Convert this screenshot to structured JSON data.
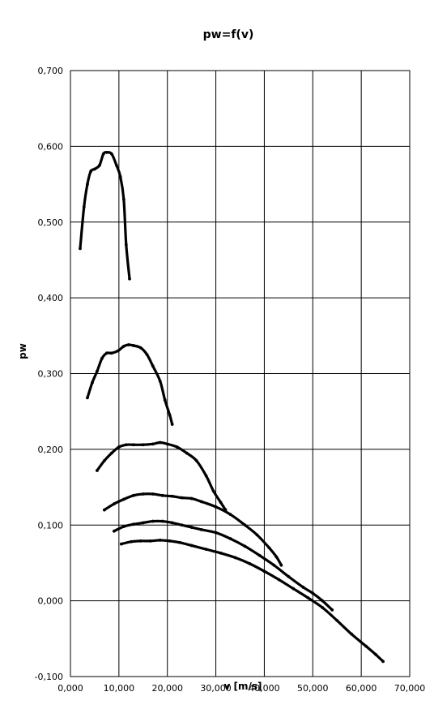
{
  "chart_data": {
    "type": "scatter",
    "title": "pw=f(v)",
    "xlabel": "v [m/s]",
    "ylabel": "pw",
    "xlim": [
      0,
      70
    ],
    "ylim": [
      -0.1,
      0.7
    ],
    "xticks": [
      0,
      10,
      20,
      30,
      40,
      50,
      60,
      70
    ],
    "yticks": [
      -0.1,
      0,
      0.1,
      0.2,
      0.3,
      0.4,
      0.5,
      0.6,
      0.7
    ],
    "xtick_labels": [
      "0,000",
      "10,000",
      "20,000",
      "30,000",
      "40,000",
      "50,000",
      "60,000",
      "70,000"
    ],
    "ytick_labels": [
      "-0,100",
      "0,000",
      "0,100",
      "0,200",
      "0,300",
      "0,400",
      "0,500",
      "0,600",
      "0,700"
    ],
    "grid": true,
    "legend": "none",
    "line_color": "#000000",
    "series": [
      {
        "x": [
          2.0,
          2.8,
          3.5,
          4.2,
          5.0,
          6.0,
          6.8,
          7.5,
          8.5,
          9.5,
          10.3,
          11.0,
          11.5,
          12.2
        ],
        "y": [
          0.465,
          0.52,
          0.55,
          0.567,
          0.57,
          0.575,
          0.59,
          0.592,
          0.59,
          0.575,
          0.56,
          0.53,
          0.47,
          0.425
        ]
      },
      {
        "x": [
          3.5,
          4.5,
          5.5,
          6.5,
          7.5,
          8.5,
          9.8,
          11.0,
          12.0,
          13.0,
          14.5,
          15.8,
          17.0,
          18.5,
          19.5,
          20.5,
          21.0
        ],
        "y": [
          0.268,
          0.288,
          0.303,
          0.32,
          0.327,
          0.327,
          0.33,
          0.336,
          0.338,
          0.337,
          0.334,
          0.325,
          0.31,
          0.29,
          0.265,
          0.245,
          0.233
        ]
      },
      {
        "x": [
          5.5,
          7.0,
          8.5,
          10.0,
          11.5,
          13.0,
          15.0,
          17.0,
          18.5,
          20.0,
          22.0,
          24.0,
          26.0,
          28.0,
          29.5,
          31.0,
          32.0
        ],
        "y": [
          0.172,
          0.185,
          0.195,
          0.203,
          0.206,
          0.206,
          0.206,
          0.207,
          0.209,
          0.207,
          0.203,
          0.195,
          0.185,
          0.165,
          0.145,
          0.13,
          0.12
        ]
      },
      {
        "x": [
          7.0,
          9.0,
          11.0,
          13.0,
          15.0,
          17.0,
          19.0,
          21.0,
          23.0,
          25.0,
          27.0,
          30.0,
          33.0,
          36.0,
          38.5,
          41.0,
          42.5,
          43.5
        ],
        "y": [
          0.12,
          0.128,
          0.134,
          0.139,
          0.141,
          0.141,
          0.139,
          0.138,
          0.136,
          0.135,
          0.131,
          0.124,
          0.114,
          0.1,
          0.087,
          0.07,
          0.058,
          0.047
        ]
      },
      {
        "x": [
          9.0,
          11.0,
          13.0,
          15.0,
          17.0,
          19.0,
          21.0,
          23.0,
          25.0,
          27.0,
          30.0,
          33.0,
          36.0,
          39.0,
          42.0,
          45.0,
          48.0,
          50.0,
          52.0,
          54.0
        ],
        "y": [
          0.092,
          0.098,
          0.101,
          0.103,
          0.105,
          0.105,
          0.103,
          0.1,
          0.097,
          0.094,
          0.09,
          0.082,
          0.072,
          0.06,
          0.047,
          0.032,
          0.018,
          0.01,
          0.0,
          -0.012
        ]
      },
      {
        "x": [
          10.5,
          12.5,
          14.5,
          16.5,
          18.5,
          20.5,
          22.5,
          25.0,
          28.0,
          31.0,
          34.0,
          37.0,
          40.0,
          43.0,
          46.0,
          49.0,
          52.0,
          55.0,
          58.0,
          61.0,
          63.0,
          64.5
        ],
        "y": [
          0.075,
          0.078,
          0.079,
          0.079,
          0.08,
          0.079,
          0.077,
          0.073,
          0.068,
          0.063,
          0.057,
          0.049,
          0.039,
          0.028,
          0.016,
          0.004,
          -0.009,
          -0.026,
          -0.044,
          -0.06,
          -0.071,
          -0.08
        ]
      }
    ]
  }
}
